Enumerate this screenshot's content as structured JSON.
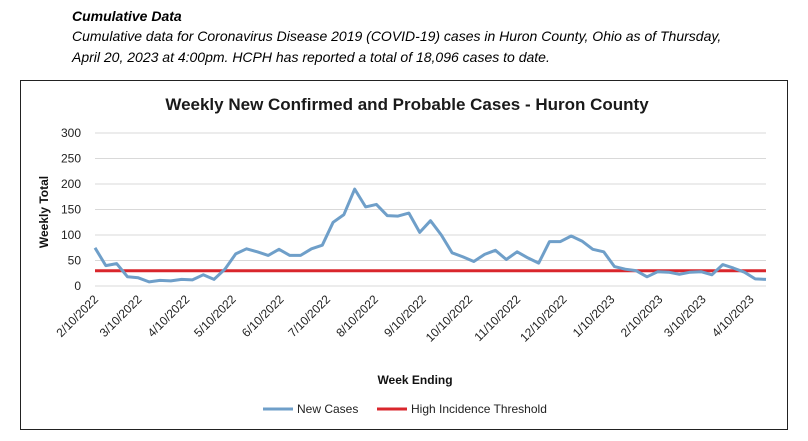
{
  "header": {
    "title": "Cumulative Data",
    "description_line1": "Cumulative data for Coronavirus Disease 2019 (COVID-19) cases in Huron County, Ohio as of Thursday,",
    "description_line2": "April 20, 2023 at 4:00pm. HCPH has reported a total of 18,096 cases to date."
  },
  "colors": {
    "new_cases": "#6f9fc9",
    "threshold": "#d9262c",
    "grid": "#d9d9d9"
  },
  "chart_data": {
    "type": "line",
    "title": "Weekly New Confirmed and Probable Cases - Huron County",
    "xlabel": "Week Ending",
    "ylabel": "Weekly Total",
    "ylim": [
      0,
      300
    ],
    "yticks": [
      0,
      50,
      100,
      150,
      200,
      250,
      300
    ],
    "grid": true,
    "legend_position": "bottom",
    "x_start": "2/10/2022",
    "x_step_days": 7,
    "x_tick_labels": [
      "2/10/2022",
      "3/10/2022",
      "4/10/2022",
      "5/10/2022",
      "6/10/2022",
      "7/10/2022",
      "8/10/2022",
      "9/10/2022",
      "10/10/2022",
      "11/10/2022",
      "12/10/2022",
      "1/10/2023",
      "2/10/2023",
      "3/10/2023",
      "4/10/2023"
    ],
    "series": [
      {
        "name": "New Cases",
        "values": [
          75,
          40,
          44,
          18,
          16,
          8,
          11,
          10,
          13,
          12,
          22,
          13,
          33,
          63,
          73,
          67,
          60,
          72,
          60,
          60,
          73,
          80,
          125,
          140,
          190,
          155,
          160,
          138,
          137,
          143,
          105,
          128,
          100,
          65,
          57,
          48,
          62,
          70,
          52,
          67,
          55,
          45,
          87,
          87,
          98,
          88,
          72,
          67,
          38,
          33,
          30,
          18,
          28,
          27,
          23,
          27,
          28,
          22,
          42,
          35,
          27,
          14,
          13
        ]
      },
      {
        "name": "High Incidence Threshold",
        "values": [
          30
        ],
        "constant": true
      }
    ]
  }
}
